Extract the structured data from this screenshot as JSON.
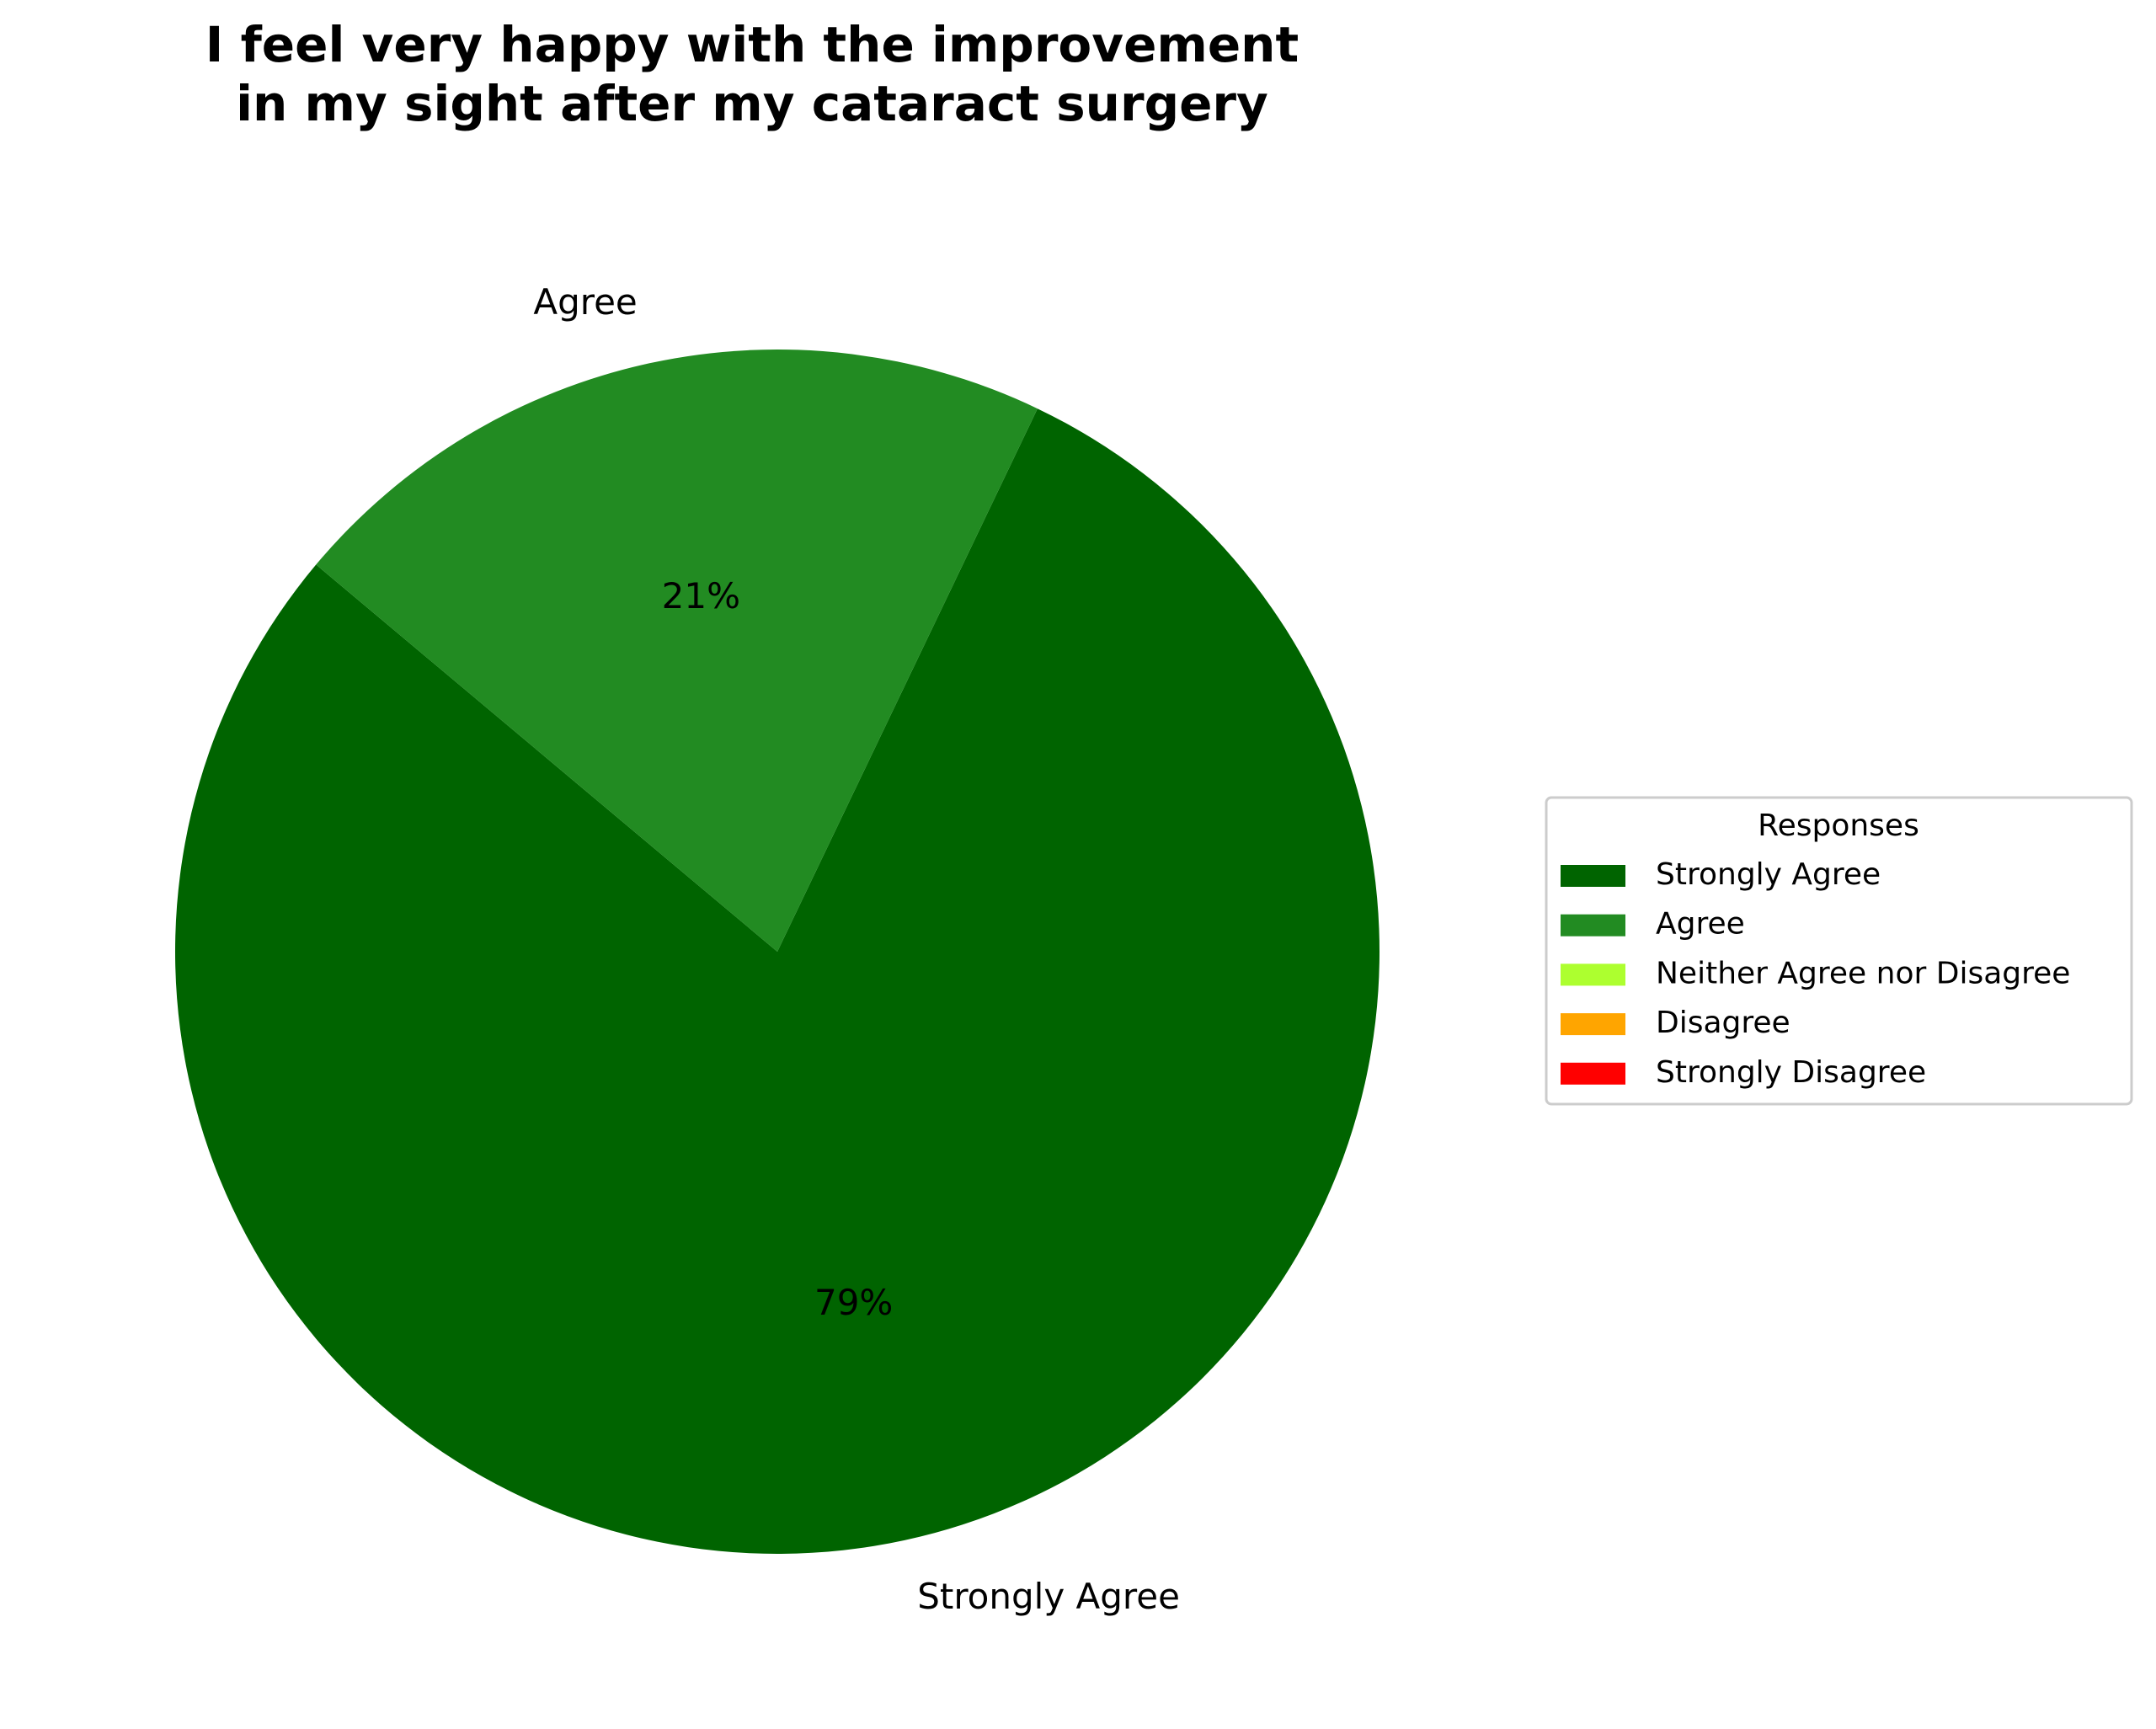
{
  "chart_data": {
    "type": "pie",
    "title": [
      "I feel very happy with the improvement",
      "in my sight after my cataract surgery"
    ],
    "categories": [
      "Strongly Agree",
      "Agree",
      "Neither Agree nor Disagree",
      "Disagree",
      "Strongly Disagree"
    ],
    "values": [
      79,
      21,
      0,
      0,
      0
    ],
    "value_labels": [
      "79%",
      "21%",
      null,
      null,
      null
    ],
    "colors": [
      "#006400",
      "#228b22",
      "#adff2f",
      "#ffa500",
      "#ff0000"
    ],
    "legend_title": "Responses",
    "legend": "right"
  }
}
